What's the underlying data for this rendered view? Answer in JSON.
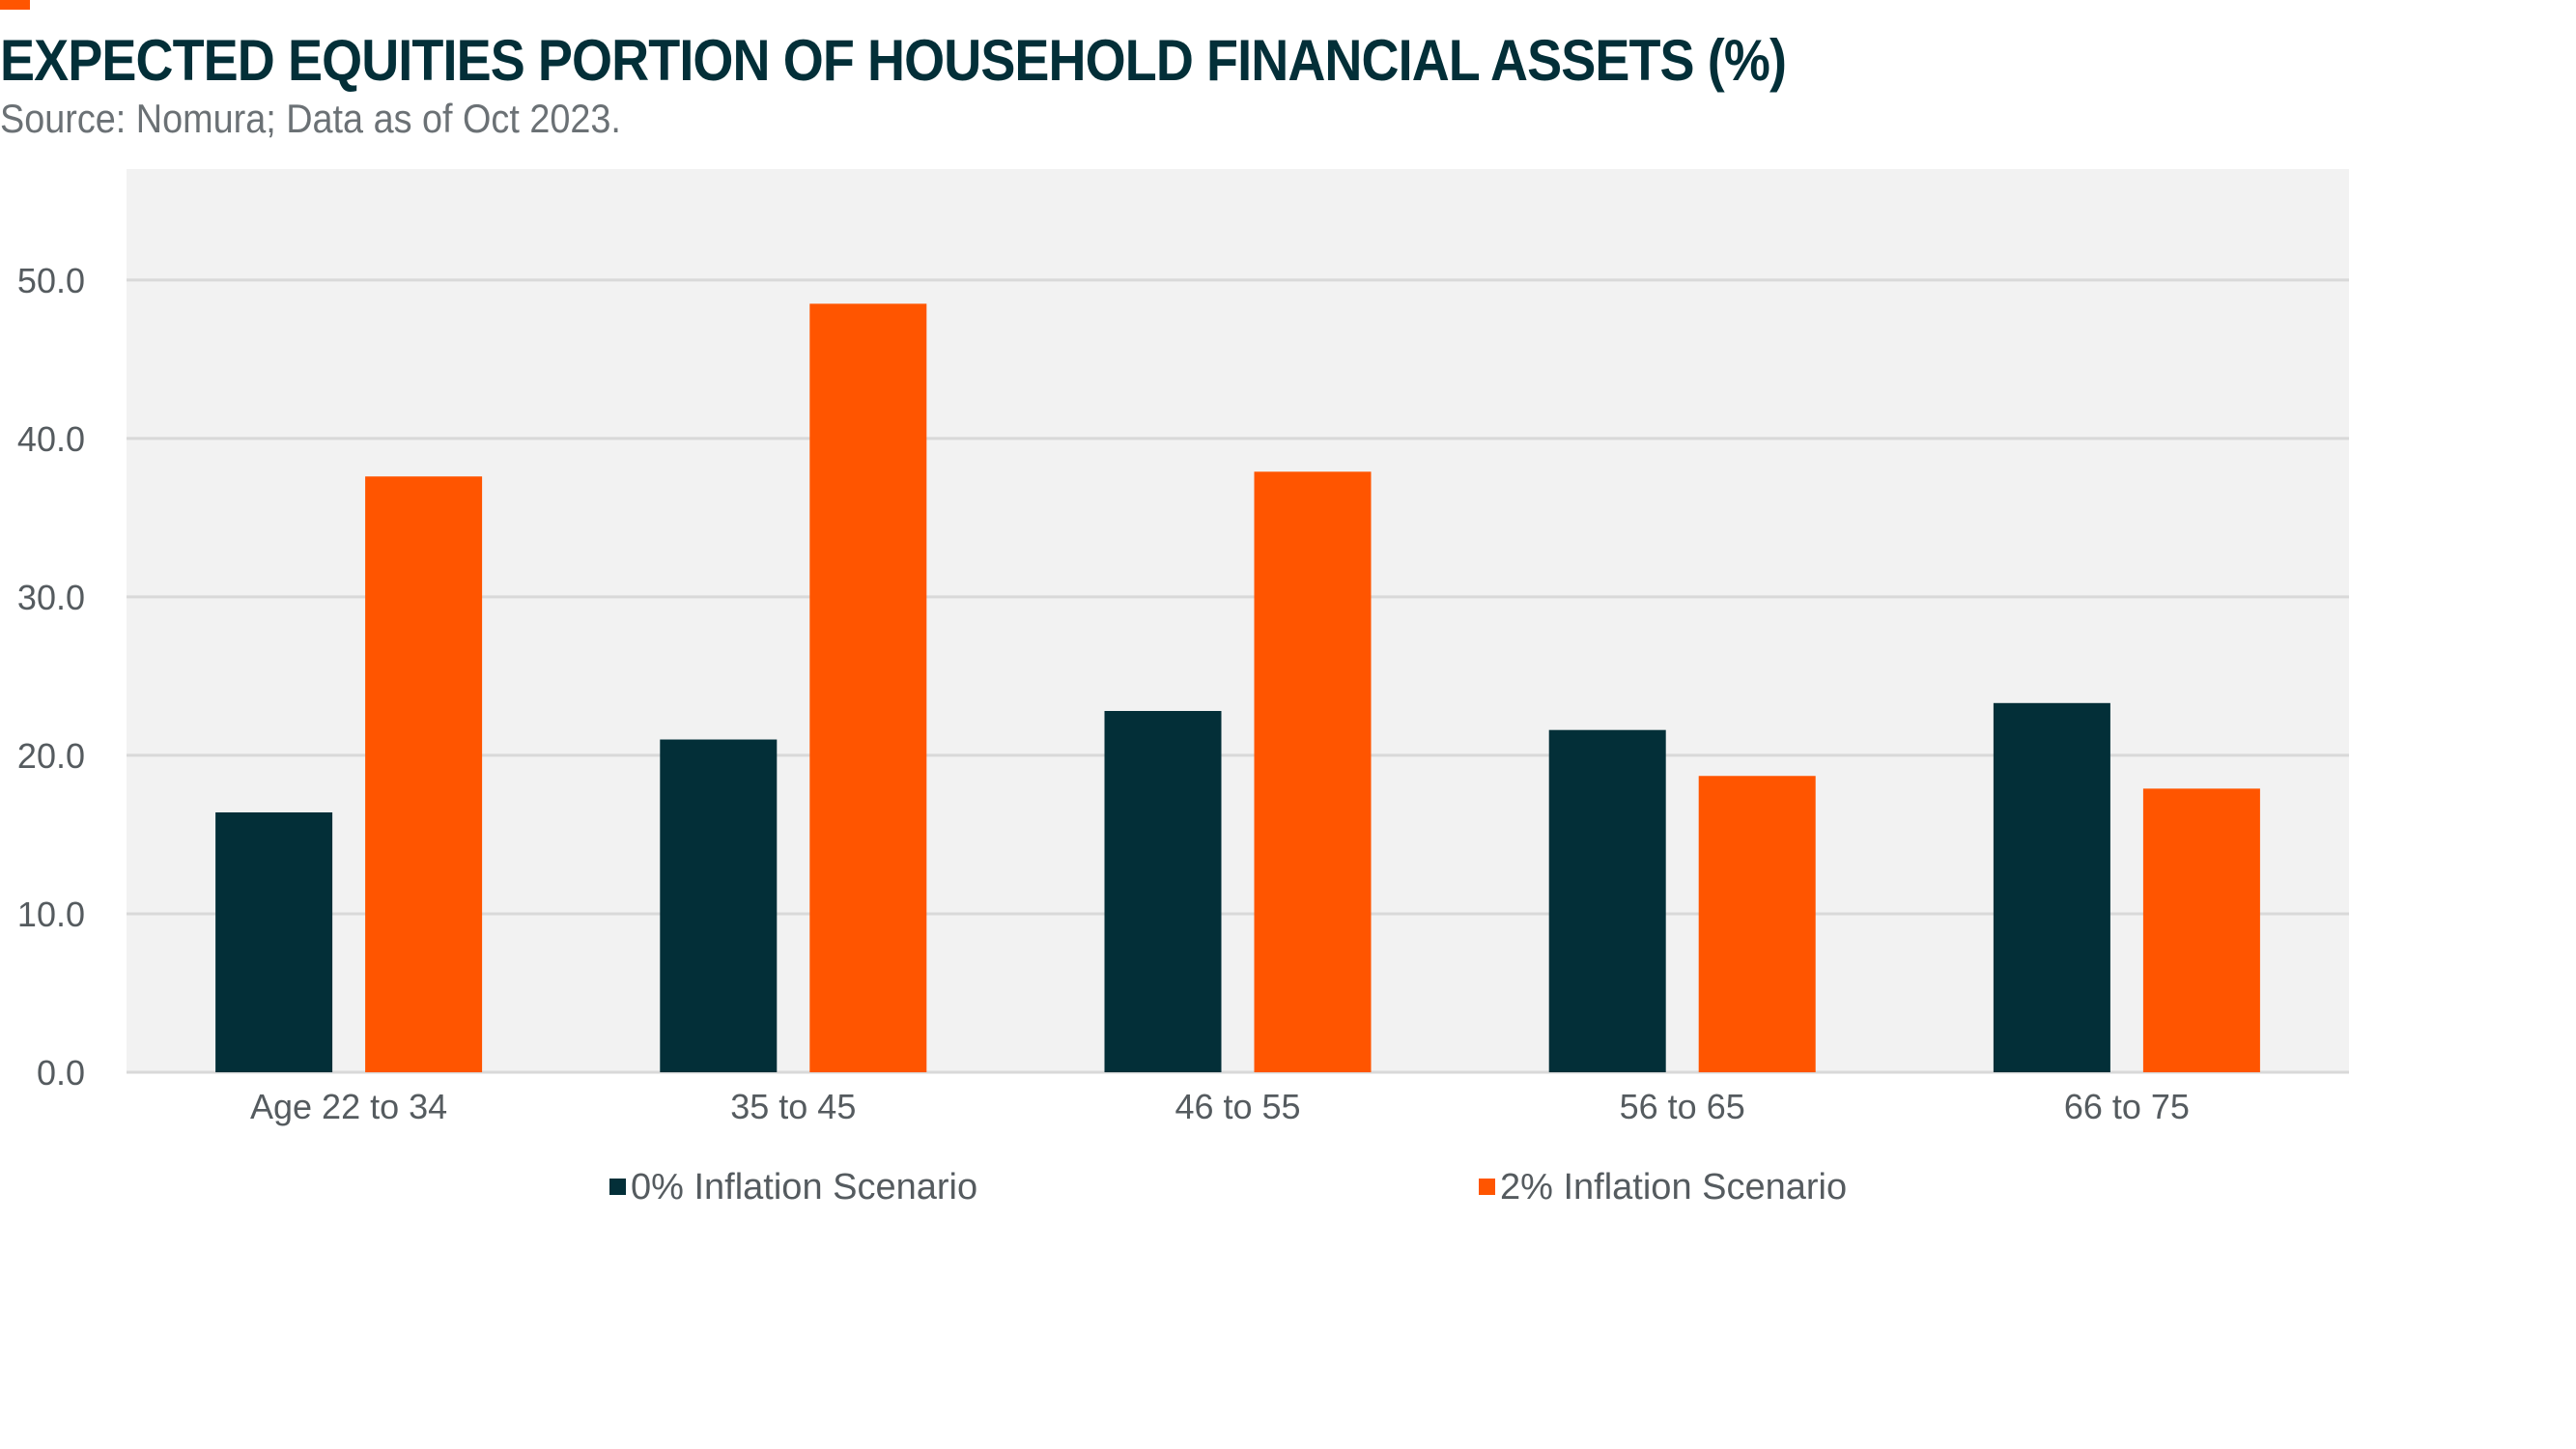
{
  "header": {
    "title": "EXPECTED EQUITIES PORTION OF HOUSEHOLD FINANCIAL ASSETS (%)",
    "subtitle": "Source: Nomura; Data as of Oct 2023."
  },
  "colors": {
    "accent": "#ff5500",
    "title": "#032f38",
    "series_0": "#032f38",
    "series_1": "#ff5500",
    "plot_bg": "#f2f2f2",
    "grid": "#d9d9d9"
  },
  "chart_data": {
    "type": "bar",
    "title": "EXPECTED EQUITIES PORTION OF HOUSEHOLD FINANCIAL ASSETS (%)",
    "xlabel": "",
    "ylabel": "",
    "categories": [
      "Age 22 to 34",
      "35 to 45",
      "46 to 55",
      "56 to 65",
      "66 to 75"
    ],
    "series": [
      {
        "name": "0% Inflation Scenario",
        "values": [
          16.4,
          21.0,
          22.8,
          21.6,
          23.3
        ]
      },
      {
        "name": "2% Inflation Scenario",
        "values": [
          37.6,
          48.5,
          37.9,
          18.7,
          17.9
        ]
      }
    ],
    "ylim": [
      0,
      57
    ],
    "yticks": [
      0,
      10,
      20,
      30,
      40,
      50
    ],
    "ytick_labels": [
      "0.0",
      "10.0",
      "20.0",
      "30.0",
      "40.0",
      "50.0"
    ],
    "grid": true,
    "legend_position": "bottom"
  }
}
